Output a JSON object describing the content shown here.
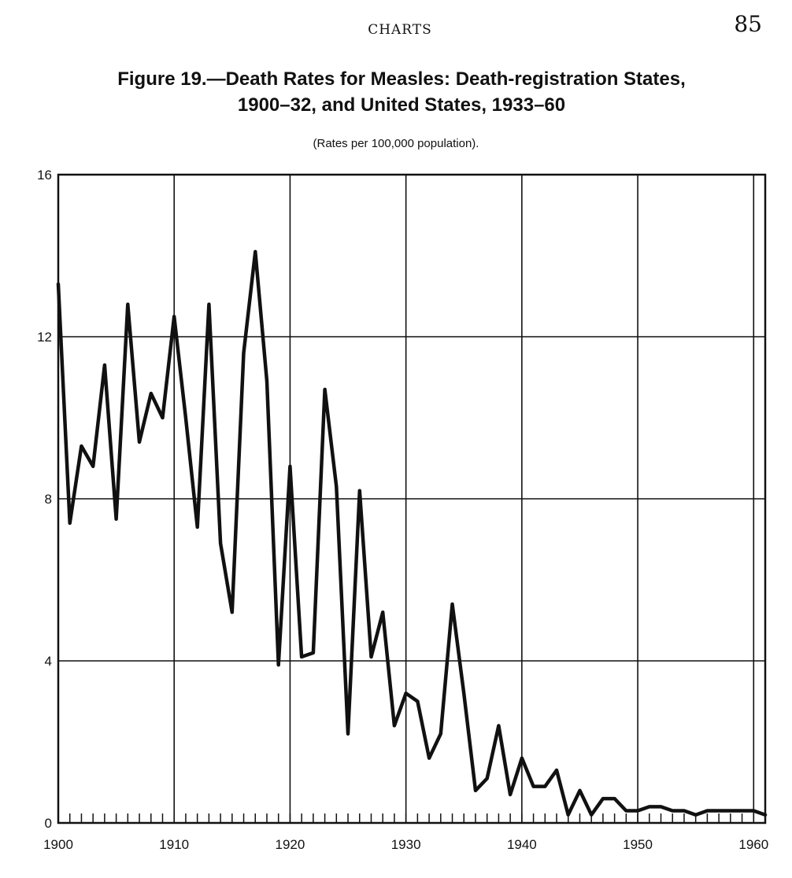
{
  "page": {
    "running_head": "CHARTS",
    "page_number": "85",
    "title_line1": "Figure 19.—Death Rates for Measles: Death-registration States,",
    "title_line2": "1900–32, and United States, 1933–60",
    "subtitle": "(Rates per 100,000 population)."
  },
  "chart_data": {
    "type": "line",
    "title": "Figure 19.—Death Rates for Measles: Death-registration States, 1900–32, and United States, 1933–60",
    "subtitle": "(Rates per 100,000 population).",
    "xlabel": "",
    "ylabel": "",
    "xlim": [
      1900,
      1961
    ],
    "ylim": [
      0,
      16
    ],
    "x_ticks": [
      1900,
      1910,
      1920,
      1930,
      1940,
      1950,
      1960
    ],
    "y_ticks": [
      0,
      4,
      8,
      12,
      16
    ],
    "grid": true,
    "line_color": "#111111",
    "series": [
      {
        "x": [
          1900,
          1901,
          1902,
          1903,
          1904,
          1905,
          1906,
          1907,
          1908,
          1909,
          1910,
          1911,
          1912,
          1913,
          1914,
          1915,
          1916,
          1917,
          1918,
          1919,
          1920,
          1921,
          1922,
          1923,
          1924,
          1925,
          1926,
          1927,
          1928,
          1929,
          1930,
          1931,
          1932,
          1933,
          1934,
          1935,
          1936,
          1937,
          1938,
          1939,
          1940,
          1941,
          1942,
          1943,
          1944,
          1945,
          1946,
          1947,
          1948,
          1949,
          1950,
          1951,
          1952,
          1953,
          1954,
          1955,
          1956,
          1957,
          1958,
          1959,
          1960,
          1961
        ],
        "values": [
          13.3,
          7.4,
          9.3,
          8.8,
          11.3,
          7.5,
          12.8,
          9.4,
          10.6,
          10.0,
          12.5,
          10.0,
          7.3,
          12.8,
          6.9,
          5.2,
          11.6,
          14.1,
          10.9,
          3.9,
          8.8,
          4.1,
          4.2,
          10.7,
          8.3,
          2.2,
          8.2,
          4.1,
          5.2,
          2.4,
          3.2,
          3.0,
          1.6,
          2.2,
          5.4,
          3.2,
          0.8,
          1.1,
          2.4,
          0.7,
          1.6,
          0.9,
          0.9,
          1.3,
          0.2,
          0.8,
          0.2,
          0.6,
          0.6,
          0.3,
          0.3,
          0.4,
          0.4,
          0.3,
          0.3,
          0.2,
          0.3,
          0.3,
          0.3,
          0.3,
          0.3,
          0.2
        ]
      }
    ]
  }
}
